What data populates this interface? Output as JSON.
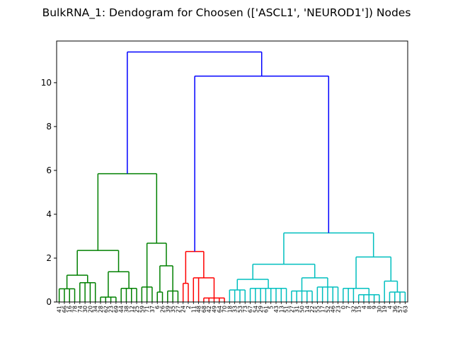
{
  "chart_data": {
    "type": "dendrogram",
    "title": "BulkRNA_1: Dendogram for Choosen (['ASCL1', 'NEUROD1']) Nodes",
    "xlabel": "",
    "ylabel": "",
    "ylim": [
      0,
      11.9
    ],
    "yticks": [
      0,
      2,
      4,
      6,
      8,
      10
    ],
    "grid": false,
    "leaf_labels": [
      "41",
      "66",
      "16",
      "78",
      "74",
      "30",
      "20",
      "34",
      "28",
      "62",
      "23",
      "69",
      "44",
      "38",
      "12",
      "25",
      "59",
      "71",
      "37",
      "6",
      "26",
      "39",
      "35",
      "27",
      "24",
      "2",
      "11",
      "48",
      "68",
      "42",
      "49",
      "64",
      "70",
      "18",
      "33",
      "53",
      "73",
      "67",
      "54",
      "29",
      "61",
      "5",
      "43",
      "13",
      "51",
      "27",
      "31",
      "50",
      "14",
      "22",
      "55",
      "17",
      "52",
      "46",
      "23",
      "0",
      "7",
      "32",
      "15",
      "4",
      "8",
      "9",
      "30",
      "19",
      "4",
      "36",
      "57",
      "63"
    ],
    "colors": {
      "root": "#0000ff",
      "cluster_green": "#008000",
      "cluster_red": "#ff0000",
      "cluster_cyan": "#00bfbf"
    },
    "merges": [
      {
        "range": [
          0,
          67
        ],
        "height": 11.4,
        "color": "root"
      },
      {
        "range": [
          24,
          67
        ],
        "height": 10.3,
        "color": "root"
      },
      {
        "range": [
          0,
          23
        ],
        "height": 5.85,
        "color": "cluster_green"
      },
      {
        "range": [
          0,
          15
        ],
        "height": 2.35,
        "color": "cluster_green"
      },
      {
        "range": [
          0,
          7
        ],
        "height": 1.22,
        "color": "cluster_green"
      },
      {
        "range": [
          0,
          3
        ],
        "height": 0.6,
        "color": "cluster_green"
      },
      {
        "range": [
          4,
          7
        ],
        "height": 0.88,
        "color": "cluster_green"
      },
      {
        "range": [
          8,
          15
        ],
        "height": 1.38,
        "color": "cluster_green"
      },
      {
        "range": [
          8,
          11
        ],
        "height": 0.22,
        "color": "cluster_green"
      },
      {
        "range": [
          12,
          15
        ],
        "height": 0.62,
        "color": "cluster_green"
      },
      {
        "range": [
          16,
          23
        ],
        "height": 2.68,
        "color": "cluster_green"
      },
      {
        "range": [
          16,
          18
        ],
        "height": 0.68,
        "color": "cluster_green"
      },
      {
        "range": [
          19,
          23
        ],
        "height": 1.65,
        "color": "cluster_green"
      },
      {
        "range": [
          19,
          20
        ],
        "height": 0.45,
        "color": "cluster_green"
      },
      {
        "range": [
          21,
          23
        ],
        "height": 0.5,
        "color": "cluster_green"
      },
      {
        "range": [
          24,
          32
        ],
        "height": 2.3,
        "color": "cluster_red"
      },
      {
        "range": [
          24,
          25
        ],
        "height": 0.85,
        "color": "cluster_red"
      },
      {
        "range": [
          26,
          32
        ],
        "height": 1.1,
        "color": "cluster_red"
      },
      {
        "range": [
          28,
          32
        ],
        "height": 0.18,
        "color": "cluster_red"
      },
      {
        "range": [
          33,
          67
        ],
        "height": 3.15,
        "color": "cluster_cyan"
      },
      {
        "range": [
          33,
          54
        ],
        "height": 1.72,
        "color": "cluster_cyan"
      },
      {
        "range": [
          33,
          44
        ],
        "height": 1.03,
        "color": "cluster_cyan"
      },
      {
        "range": [
          33,
          36
        ],
        "height": 0.55,
        "color": "cluster_cyan"
      },
      {
        "range": [
          37,
          44
        ],
        "height": 0.62,
        "color": "cluster_cyan"
      },
      {
        "range": [
          45,
          54
        ],
        "height": 1.1,
        "color": "cluster_cyan"
      },
      {
        "range": [
          45,
          49
        ],
        "height": 0.5,
        "color": "cluster_cyan"
      },
      {
        "range": [
          50,
          54
        ],
        "height": 0.68,
        "color": "cluster_cyan"
      },
      {
        "range": [
          55,
          67
        ],
        "height": 2.05,
        "color": "cluster_cyan"
      },
      {
        "range": [
          55,
          62
        ],
        "height": 0.62,
        "color": "cluster_cyan"
      },
      {
        "range": [
          58,
          62
        ],
        "height": 0.33,
        "color": "cluster_cyan"
      },
      {
        "range": [
          63,
          67
        ],
        "height": 0.95,
        "color": "cluster_cyan"
      },
      {
        "range": [
          64,
          67
        ],
        "height": 0.45,
        "color": "cluster_cyan"
      }
    ]
  }
}
